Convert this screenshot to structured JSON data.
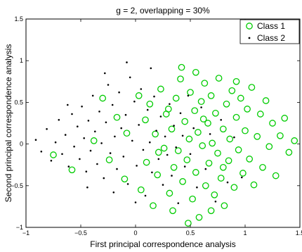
{
  "chart_data": {
    "type": "scatter",
    "title": "g = 2, overlapping = 30%",
    "xlabel": "First principal correspondence analysis",
    "ylabel": "Second principal correspondence analysis",
    "xlim": [
      -1,
      1.5
    ],
    "ylim": [
      -1,
      1.5
    ],
    "xticks": [
      -1,
      -0.5,
      0,
      0.5,
      1,
      1.5
    ],
    "yticks": [
      -1,
      -0.5,
      0,
      0.5,
      1,
      1.5
    ],
    "xtick_labels": [
      "−1",
      "−0.5",
      "0",
      "0.5",
      "1",
      "1.5"
    ],
    "ytick_labels": [
      "−1",
      "−0.5",
      "0",
      "0.5",
      "1",
      "1.5"
    ],
    "grid": false,
    "legend_position": "top-right",
    "colors": {
      "class1": "#00cc00",
      "class2": "#000000"
    },
    "series": [
      {
        "name": "Class 1",
        "marker": "open-circle",
        "points": [
          [
            -0.75,
            -0.13
          ],
          [
            -0.58,
            -0.31
          ],
          [
            -0.38,
            0.04
          ],
          [
            -0.3,
            0.55
          ],
          [
            -0.24,
            -0.19
          ],
          [
            -0.17,
            0.32
          ],
          [
            -0.1,
            -0.42
          ],
          [
            -0.08,
            0.13
          ],
          [
            0.03,
            0.58
          ],
          [
            0.05,
            -0.55
          ],
          [
            0.09,
            0.29
          ],
          [
            0.1,
            -0.22
          ],
          [
            0.13,
            0.48
          ],
          [
            0.16,
            -0.74
          ],
          [
            0.18,
            0.12
          ],
          [
            0.2,
            -0.37
          ],
          [
            0.23,
            0.66
          ],
          [
            0.26,
            -0.05
          ],
          [
            0.28,
            0.36
          ],
          [
            0.31,
            -0.59
          ],
          [
            0.33,
            0.18
          ],
          [
            0.35,
            -0.28
          ],
          [
            0.37,
            0.55
          ],
          [
            0.39,
            -0.08
          ],
          [
            0.41,
            0.78
          ],
          [
            0.43,
            -0.45
          ],
          [
            0.45,
            0.27
          ],
          [
            0.47,
            -0.19
          ],
          [
            0.49,
            0.06
          ],
          [
            0.5,
            0.62
          ],
          [
            0.52,
            -0.66
          ],
          [
            0.54,
            0.4
          ],
          [
            0.55,
            -0.34
          ],
          [
            0.57,
            0.14
          ],
          [
            0.58,
            -0.88
          ],
          [
            0.6,
            0.51
          ],
          [
            0.61,
            -0.02
          ],
          [
            0.63,
            0.73
          ],
          [
            0.64,
            -0.5
          ],
          [
            0.66,
            0.25
          ],
          [
            0.67,
            -0.23
          ],
          [
            0.69,
            0.58
          ],
          [
            0.7,
            0.01
          ],
          [
            0.72,
            -0.61
          ],
          [
            0.73,
            0.37
          ],
          [
            0.75,
            -0.11
          ],
          [
            0.76,
            0.79
          ],
          [
            0.78,
            -0.41
          ],
          [
            0.8,
            0.18
          ],
          [
            0.81,
            -0.74
          ],
          [
            0.83,
            0.48
          ],
          [
            0.85,
            -0.2
          ],
          [
            0.86,
            0.06
          ],
          [
            0.88,
            0.64
          ],
          [
            0.9,
            -0.52
          ],
          [
            0.92,
            0.32
          ],
          [
            0.94,
            -0.07
          ],
          [
            0.96,
            0.55
          ],
          [
            0.98,
            -0.35
          ],
          [
            1.0,
            0.16
          ],
          [
            1.02,
            0.42
          ],
          [
            1.04,
            -0.18
          ],
          [
            1.06,
            0.68
          ],
          [
            1.08,
            -0.49
          ],
          [
            1.11,
            0.09
          ],
          [
            1.14,
            0.36
          ],
          [
            1.16,
            -0.28
          ],
          [
            1.19,
            0.52
          ],
          [
            1.22,
            -0.03
          ],
          [
            1.25,
            0.25
          ],
          [
            1.28,
            -0.38
          ],
          [
            1.32,
            0.1
          ],
          [
            1.36,
            0.31
          ],
          [
            1.4,
            -0.1
          ],
          [
            1.45,
            0.04
          ],
          [
            0.42,
            0.92
          ],
          [
            0.55,
            0.86
          ],
          [
            0.34,
            -0.8
          ],
          [
            0.48,
            -0.95
          ],
          [
            0.69,
            -0.8
          ],
          [
            0.92,
            0.75
          ],
          [
            0.3,
            0.42
          ],
          [
            0.21,
            -0.1
          ],
          [
            0.62,
            0.3
          ],
          [
            0.8,
            -0.28
          ]
        ]
      },
      {
        "name": "Class 2",
        "marker": "dot",
        "points": [
          [
            -0.91,
            0.05
          ],
          [
            -0.86,
            -0.09
          ],
          [
            -0.81,
            0.18
          ],
          [
            -0.77,
            -0.2
          ],
          [
            -0.73,
            0.02
          ],
          [
            -0.7,
            0.29
          ],
          [
            -0.67,
            -0.12
          ],
          [
            -0.64,
            0.11
          ],
          [
            -0.61,
            -0.27
          ],
          [
            -0.58,
            0.36
          ],
          [
            -0.56,
            -0.03
          ],
          [
            -0.53,
            0.21
          ],
          [
            -0.51,
            -0.18
          ],
          [
            -0.49,
            0.45
          ],
          [
            -0.47,
            0.07
          ],
          [
            -0.45,
            -0.33
          ],
          [
            -0.43,
            0.28
          ],
          [
            -0.41,
            -0.08
          ],
          [
            -0.39,
            0.58
          ],
          [
            -0.37,
            0.15
          ],
          [
            -0.35,
            -0.24
          ],
          [
            -0.33,
            0.39
          ],
          [
            -0.31,
            0.01
          ],
          [
            -0.29,
            -0.41
          ],
          [
            -0.27,
            0.26
          ],
          [
            -0.25,
            0.71
          ],
          [
            -0.23,
            -0.11
          ],
          [
            -0.21,
            0.47
          ],
          [
            -0.19,
            0.09
          ],
          [
            -0.17,
            -0.3
          ],
          [
            -0.15,
            0.62
          ],
          [
            -0.13,
            0.19
          ],
          [
            -0.11,
            -0.15
          ],
          [
            -0.09,
            0.35
          ],
          [
            -0.07,
            -0.48
          ],
          [
            -0.05,
            0.8
          ],
          [
            -0.03,
            0.04
          ],
          [
            -0.01,
            0.51
          ],
          [
            0.01,
            -0.26
          ],
          [
            0.03,
            0.23
          ],
          [
            0.05,
            0.66
          ],
          [
            0.07,
            -0.07
          ],
          [
            0.09,
            -0.62
          ],
          [
            0.11,
            0.41
          ],
          [
            0.13,
            0.02
          ],
          [
            0.15,
            -0.34
          ],
          [
            0.17,
            0.57
          ],
          [
            0.19,
            0.16
          ],
          [
            0.21,
            -0.18
          ],
          [
            0.23,
            0.33
          ],
          [
            0.25,
            -0.49
          ],
          [
            0.27,
            0.09
          ],
          [
            0.29,
            -0.13
          ],
          [
            0.31,
            0.48
          ],
          [
            0.33,
            -0.38
          ],
          [
            0.35,
            0.22
          ],
          [
            0.37,
            -0.04
          ],
          [
            0.39,
            -0.71
          ],
          [
            0.41,
            0.37
          ],
          [
            0.43,
            0.1
          ],
          [
            0.45,
            -0.27
          ],
          [
            0.48,
            0.58
          ],
          [
            0.5,
            -0.12
          ],
          [
            0.53,
            0.19
          ],
          [
            0.56,
            -0.52
          ],
          [
            0.6,
            0.44
          ],
          [
            0.64,
            -0.3
          ],
          [
            0.68,
            0.12
          ],
          [
            0.73,
            -0.69
          ],
          [
            0.78,
            0.29
          ],
          [
            0.84,
            -0.46
          ],
          [
            0.9,
            0.08
          ],
          [
            0.97,
            -0.4
          ],
          [
            -0.62,
            0.47
          ],
          [
            -0.44,
            -0.52
          ],
          [
            -0.2,
            -0.58
          ],
          [
            -0.08,
            0.98
          ],
          [
            0.0,
            -0.7
          ],
          [
            0.14,
            0.91
          ],
          [
            -0.28,
            0.85
          ]
        ]
      }
    ]
  }
}
